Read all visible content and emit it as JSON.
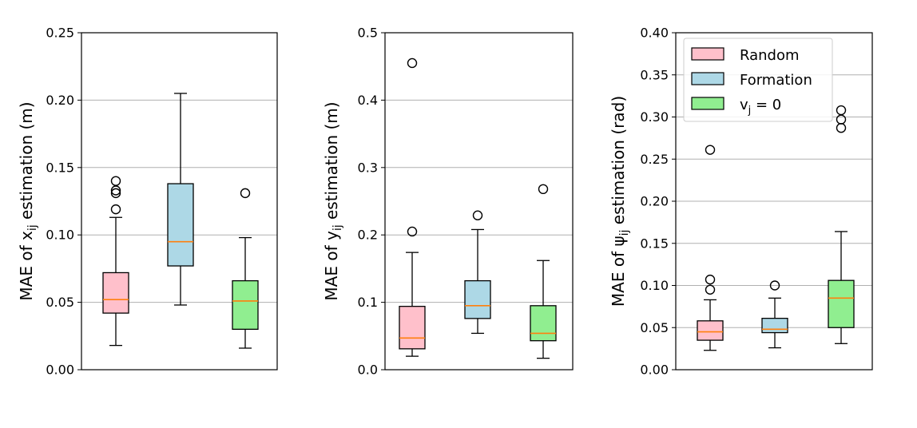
{
  "colors": {
    "Random": "#ffc0cb",
    "Formation": "#add8e6",
    "v_j = 0": "#90ee90",
    "median": "#ff7f0e",
    "grid": "#b0b0b0"
  },
  "chart_data": [
    {
      "type": "box",
      "ylabel": {
        "prefix": "MAE of ",
        "sym": "x",
        "sub": "ij",
        "suffix": " estimation (m)"
      },
      "ylim": [
        0,
        0.25
      ],
      "yticks": [
        "0.00",
        "0.05",
        "0.10",
        "0.15",
        "0.20",
        "0.25"
      ],
      "ytick_values": [
        0,
        0.05,
        0.1,
        0.15,
        0.2,
        0.25
      ],
      "grid": true,
      "boxes": [
        {
          "name": "Random",
          "whislo": 0.018,
          "q1": 0.042,
          "med": 0.052,
          "q3": 0.072,
          "whishi": 0.113,
          "fliers": [
            0.119,
            0.131,
            0.133,
            0.14
          ]
        },
        {
          "name": "Formation",
          "whislo": 0.048,
          "q1": 0.077,
          "med": 0.095,
          "q3": 0.138,
          "whishi": 0.205,
          "fliers": []
        },
        {
          "name": "v_j = 0",
          "whislo": 0.016,
          "q1": 0.03,
          "med": 0.051,
          "q3": 0.066,
          "whishi": 0.098,
          "fliers": [
            0.131
          ]
        }
      ]
    },
    {
      "type": "box",
      "ylabel": {
        "prefix": "MAE of ",
        "sym": "y",
        "sub": "ij",
        "suffix": " estimation (m)"
      },
      "ylim": [
        0,
        0.5
      ],
      "yticks": [
        "0.0",
        "0.1",
        "0.2",
        "0.3",
        "0.4",
        "0.5"
      ],
      "ytick_values": [
        0,
        0.1,
        0.2,
        0.3,
        0.4,
        0.5
      ],
      "grid": true,
      "boxes": [
        {
          "name": "Random",
          "whislo": 0.02,
          "q1": 0.031,
          "med": 0.047,
          "q3": 0.094,
          "whishi": 0.174,
          "fliers": [
            0.205,
            0.455
          ]
        },
        {
          "name": "Formation",
          "whislo": 0.054,
          "q1": 0.076,
          "med": 0.095,
          "q3": 0.132,
          "whishi": 0.208,
          "fliers": [
            0.229
          ]
        },
        {
          "name": "v_j = 0",
          "whislo": 0.017,
          "q1": 0.043,
          "med": 0.054,
          "q3": 0.095,
          "whishi": 0.162,
          "fliers": [
            0.268
          ]
        }
      ]
    },
    {
      "type": "box",
      "ylabel": {
        "prefix": "MAE of ",
        "sym": "ψ",
        "sub": "ij",
        "suffix": " estimation (rad)"
      },
      "ylim": [
        0,
        0.4
      ],
      "yticks": [
        "0.00",
        "0.05",
        "0.10",
        "0.15",
        "0.20",
        "0.25",
        "0.30",
        "0.35",
        "0.40"
      ],
      "ytick_values": [
        0,
        0.05,
        0.1,
        0.15,
        0.2,
        0.25,
        0.3,
        0.35,
        0.4
      ],
      "grid": true,
      "legend": {
        "position": "top-left",
        "entries": [
          {
            "label": "Random",
            "color": "#ffc0cb"
          },
          {
            "label": "Formation",
            "color": "#add8e6"
          },
          {
            "label_main": "v",
            "label_sub": "j",
            "label_rest": " = 0",
            "color": "#90ee90"
          }
        ]
      },
      "boxes": [
        {
          "name": "Random",
          "whislo": 0.023,
          "q1": 0.035,
          "med": 0.045,
          "q3": 0.058,
          "whishi": 0.083,
          "fliers": [
            0.095,
            0.107,
            0.261
          ]
        },
        {
          "name": "Formation",
          "whislo": 0.026,
          "q1": 0.044,
          "med": 0.048,
          "q3": 0.061,
          "whishi": 0.085,
          "fliers": [
            0.1
          ]
        },
        {
          "name": "v_j = 0",
          "whislo": 0.031,
          "q1": 0.05,
          "med": 0.085,
          "q3": 0.106,
          "whishi": 0.164,
          "fliers": [
            0.287,
            0.297,
            0.308
          ]
        }
      ]
    }
  ]
}
